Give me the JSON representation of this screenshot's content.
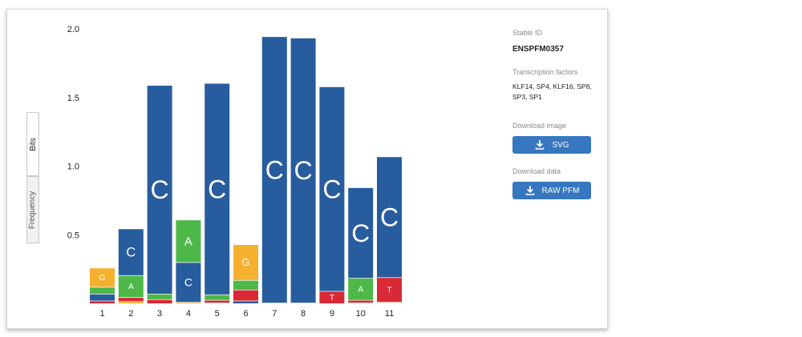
{
  "chart_data": {
    "type": "bar",
    "subtype": "sequence-logo-stacked",
    "ylabel": "Bits",
    "ylim": [
      0,
      2.0
    ],
    "yticks": [
      0.5,
      1.0,
      1.5,
      2.0
    ],
    "categories": [
      "1",
      "2",
      "3",
      "4",
      "5",
      "6",
      "7",
      "8",
      "9",
      "10",
      "11"
    ],
    "series": [
      {
        "name": "A",
        "color": "#4db848",
        "values": [
          0.05,
          0.16,
          0.04,
          0.31,
          0.04,
          0.07,
          0.005,
          0.005,
          0.0,
          0.16,
          0.005
        ]
      },
      {
        "name": "C",
        "color": "#275c9e",
        "values": [
          0.05,
          0.34,
          1.52,
          0.29,
          1.54,
          0.02,
          1.94,
          1.93,
          1.49,
          0.66,
          0.88
        ]
      },
      {
        "name": "G",
        "color": "#f4b02e",
        "values": [
          0.14,
          0.015,
          0.005,
          0.01,
          0.005,
          0.26,
          0.005,
          0.005,
          0.005,
          0.005,
          0.005
        ]
      },
      {
        "name": "T",
        "color": "#d82935",
        "values": [
          0.02,
          0.03,
          0.03,
          0.005,
          0.02,
          0.08,
          0.005,
          0.005,
          0.09,
          0.02,
          0.18
        ]
      }
    ],
    "stack_order": [
      [
        "T",
        "C",
        "A",
        "G"
      ],
      [
        "G",
        "T",
        "A",
        "C"
      ],
      [
        "T",
        "A",
        "C"
      ],
      [
        "G",
        "C",
        "A"
      ],
      [
        "G",
        "T",
        "A",
        "C"
      ],
      [
        "C",
        "T",
        "A",
        "G"
      ],
      [
        "A",
        "C"
      ],
      [
        "G",
        "C"
      ],
      [
        "T",
        "C"
      ],
      [
        "G",
        "T",
        "A",
        "C"
      ],
      [
        "G",
        "A",
        "T",
        "C"
      ]
    ]
  },
  "view_tabs": {
    "bits": "Bits",
    "frequency": "Frequency"
  },
  "sidebar": {
    "stable_id_label": "Stable ID",
    "stable_id": "ENSPFM0357",
    "tf_label": "Transcription factors",
    "tf_line1": "KLF14, SP4, KLF16, SP8,",
    "tf_line2": "SP3, SP1",
    "download_image_label": "Download image",
    "svg_button": "SVG",
    "download_data_label": "Download data",
    "raw_button": "RAW PFM",
    "download_icon": "download-icon",
    "button_color": "#3777bf"
  }
}
